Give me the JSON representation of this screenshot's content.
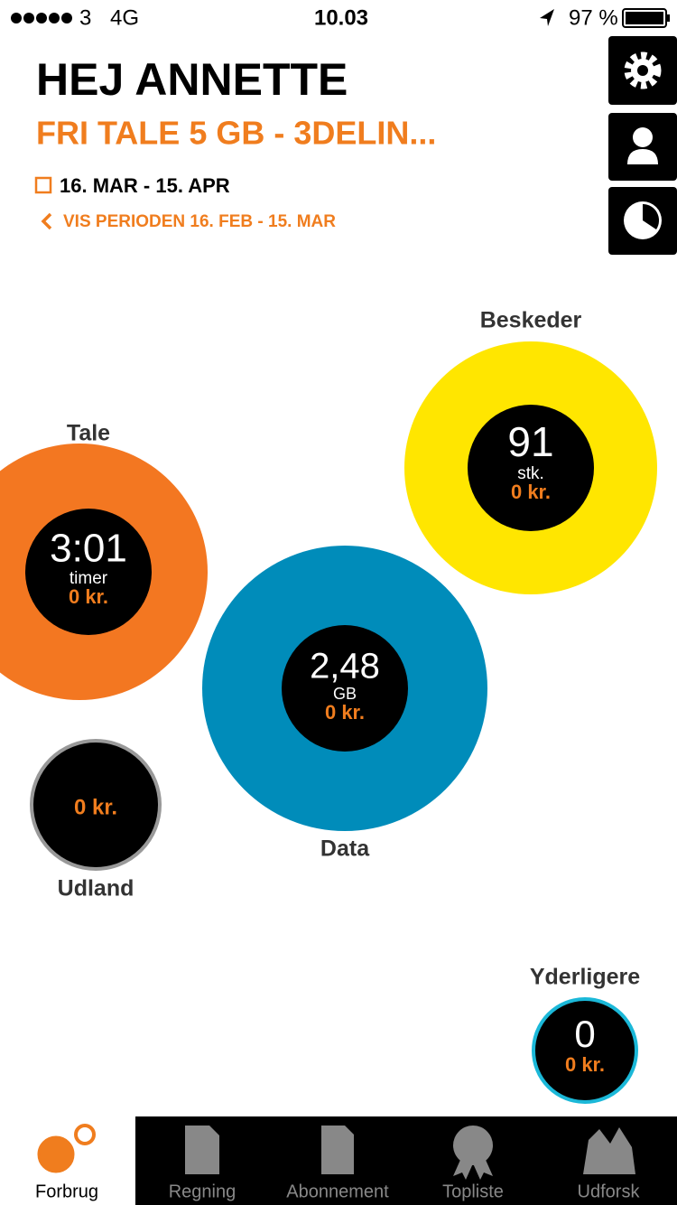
{
  "status_bar": {
    "carrier": "3",
    "network": "4G",
    "time": "10.03",
    "battery": "97 %"
  },
  "header": {
    "greeting": "HEJ ANNETTE",
    "plan": "FRI TALE 5 GB - 3DELIN...",
    "period": "16. MAR - 15. APR",
    "previous_period": "VIS PERIODEN 16. FEB - 15. MAR"
  },
  "bubbles": [
    {
      "label": "Beskeder",
      "value": "91",
      "unit": "stk.",
      "cost": "0 kr."
    },
    {
      "label": "Tale",
      "value": "3:01",
      "unit": "timer",
      "cost": "0 kr."
    },
    {
      "label": "Data",
      "value": "2,48",
      "unit": "GB",
      "cost": "0 kr."
    },
    {
      "label": "Udland",
      "cost": "0 kr."
    },
    {
      "label": "Yderligere",
      "value": "0",
      "cost": "0 kr."
    }
  ],
  "tabs": [
    "Forbrug",
    "Regning",
    "Abonnement",
    "Topliste",
    "Udforsk"
  ]
}
